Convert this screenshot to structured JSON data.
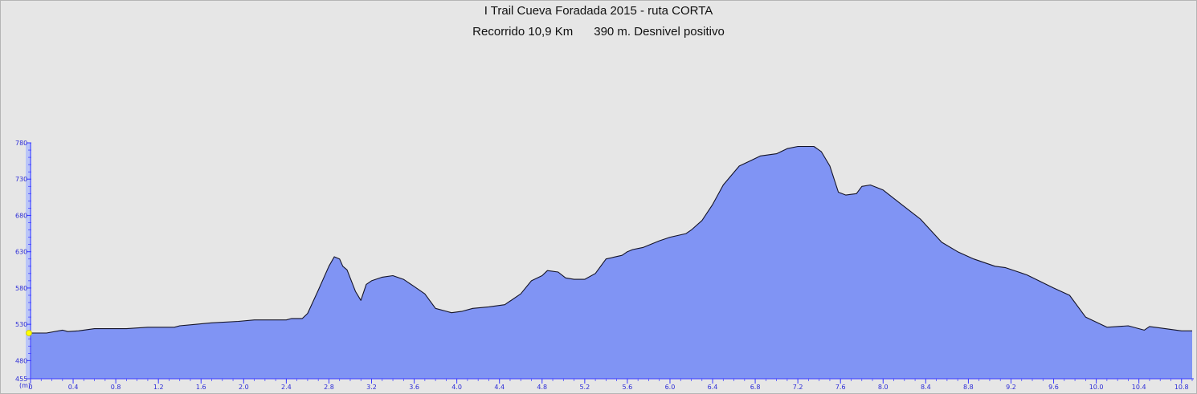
{
  "window": {
    "title_line1": "I Trail Cueva Foradada 2015 - ruta CORTA",
    "subtitle_distance": "Recorrido 10,9 Km",
    "subtitle_climb": "390 m. Desnivel positivo"
  },
  "colors": {
    "background": "#e6e6e6",
    "fill": "#8094f4",
    "outline": "#141428",
    "axis": "#3a3aff",
    "axis_band": "#a7b7ff",
    "marker": "#ffff00"
  },
  "chart_data": {
    "type": "area",
    "title": "I Trail Cueva Foradada 2015 - ruta CORTA",
    "subtitle": "Recorrido 10,9 Km      390 m. Desnivel positivo",
    "xlabel": "",
    "ylabel": "(m)",
    "xlim": [
      0,
      10.9
    ],
    "ylim": [
      455,
      780
    ],
    "x_ticks": [
      "0",
      "0.4",
      "0.8",
      "1.2",
      "1.6",
      "2.0",
      "2.4",
      "2.8",
      "3.2",
      "3.6",
      "4.0",
      "4.4",
      "4.8",
      "5.2",
      "5.6",
      "6.0",
      "6.4",
      "6.8",
      "7.2",
      "7.6",
      "8.0",
      "8.4",
      "8.8",
      "9.2",
      "9.6",
      "10.0",
      "10.4",
      "10.8"
    ],
    "y_ticks": [
      455,
      480,
      530,
      580,
      630,
      680,
      730,
      780
    ],
    "grid": false,
    "marker_point": {
      "x": 0,
      "y": 518
    },
    "series": [
      {
        "x": [
          0,
          0.15,
          0.3,
          0.35,
          0.45,
          0.6,
          0.9,
          1.0,
          1.1,
          1.35,
          1.4,
          1.55,
          1.7,
          1.95,
          2.1,
          2.4,
          2.45,
          2.55,
          2.6,
          2.7,
          2.8,
          2.85,
          2.9,
          2.93,
          2.97,
          3.05,
          3.1,
          3.15,
          3.2,
          3.3,
          3.4,
          3.5,
          3.6,
          3.7,
          3.8,
          3.9,
          3.95,
          4.05,
          4.15,
          4.3,
          4.45,
          4.6,
          4.7,
          4.8,
          4.85,
          4.95,
          5.02,
          5.1,
          5.2,
          5.3,
          5.4,
          5.55,
          5.6,
          5.65,
          5.75,
          5.9,
          6.0,
          6.15,
          6.2,
          6.3,
          6.4,
          6.5,
          6.65,
          6.75,
          6.85,
          7.0,
          7.1,
          7.2,
          7.35,
          7.42,
          7.5,
          7.58,
          7.65,
          7.75,
          7.8,
          7.88,
          8.0,
          8.2,
          8.35,
          8.55,
          8.7,
          8.85,
          9.05,
          9.15,
          9.35,
          9.6,
          9.75,
          9.9,
          10.1,
          10.3,
          10.45,
          10.5,
          10.6,
          10.8,
          10.9
        ],
        "y": [
          518,
          518,
          522,
          520,
          521,
          524,
          524,
          525,
          526,
          526,
          528,
          530,
          532,
          534,
          536,
          536,
          538,
          538,
          545,
          577,
          610,
          623,
          620,
          610,
          605,
          575,
          563,
          585,
          590,
          595,
          597,
          592,
          582,
          572,
          552,
          548,
          546,
          548,
          552,
          554,
          557,
          572,
          590,
          597,
          604,
          602,
          594,
          592,
          592,
          600,
          620,
          625,
          630,
          633,
          636,
          645,
          650,
          655,
          660,
          673,
          695,
          722,
          748,
          755,
          762,
          765,
          772,
          775,
          775,
          768,
          748,
          712,
          708,
          710,
          720,
          722,
          715,
          692,
          675,
          643,
          630,
          620,
          610,
          608,
          598,
          580,
          570,
          540,
          526,
          528,
          522,
          527,
          525,
          521,
          521
        ]
      }
    ]
  }
}
